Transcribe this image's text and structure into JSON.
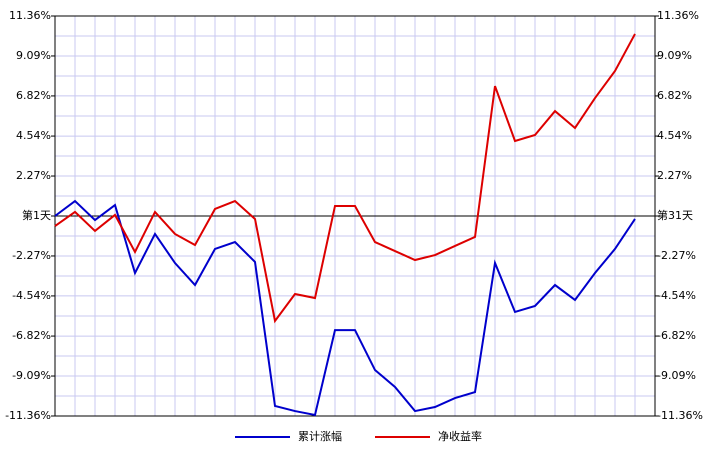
{
  "chart_data": {
    "type": "line",
    "x": [
      1,
      2,
      3,
      4,
      5,
      6,
      7,
      8,
      9,
      10,
      11,
      12,
      13,
      14,
      15,
      16,
      17,
      18,
      19,
      20,
      21,
      22,
      23,
      24,
      25,
      26,
      27,
      28,
      29,
      30
    ],
    "xlim": [
      1,
      31
    ],
    "xticks": [
      1,
      2,
      3,
      4,
      5,
      6,
      7,
      8,
      9,
      10,
      11,
      12,
      13,
      14,
      15,
      16,
      17,
      18,
      19,
      20,
      21,
      22,
      23,
      24,
      25,
      26,
      27,
      28,
      29,
      30,
      31
    ],
    "series": [
      {
        "name": "累计涨幅",
        "color": "#0000cc",
        "values": [
          0,
          0.85,
          -0.23,
          0.62,
          -3.24,
          -1.02,
          -2.67,
          -3.92,
          -1.87,
          -1.48,
          -2.61,
          -10.79,
          -11.08,
          -11.3,
          -6.48,
          -6.48,
          -8.75,
          -9.71,
          -11.08,
          -10.85,
          -10.34,
          -10.0,
          -2.67,
          -5.45,
          -5.11,
          -3.92,
          -4.77,
          -3.24,
          -1.87,
          -0.17
        ]
      },
      {
        "name": "净收益率",
        "color": "#dd0000",
        "values": [
          -0.57,
          0.23,
          -0.85,
          0.06,
          -2.04,
          0.23,
          -1.02,
          -1.65,
          0.4,
          0.85,
          -0.17,
          -5.96,
          -4.43,
          -4.66,
          0.57,
          0.57,
          -1.48,
          -1.99,
          -2.5,
          -2.22,
          -1.7,
          -1.19,
          7.38,
          4.26,
          4.6,
          5.96,
          5.0,
          6.7,
          8.24,
          10.34
        ]
      }
    ],
    "ylim": [
      -11.36,
      11.36
    ],
    "yticks": [
      {
        "value": 11.36,
        "label": "11.36%"
      },
      {
        "value": 9.09,
        "label": "9.09%"
      },
      {
        "value": 6.82,
        "label": "6.82%"
      },
      {
        "value": 4.54,
        "label": "4.54%"
      },
      {
        "value": 2.27,
        "label": "2.27%"
      },
      {
        "value": 0,
        "label": "第1天"
      },
      {
        "value": -2.27,
        "label": "-2.27%"
      },
      {
        "value": -4.54,
        "label": "-4.54%"
      },
      {
        "value": -6.82,
        "label": "-6.82%"
      },
      {
        "value": -9.09,
        "label": "-9.09%"
      },
      {
        "value": -11.36,
        "label": "-11.36%"
      }
    ],
    "y2lim": [
      -11.36,
      11.36
    ],
    "y2ticks": [
      {
        "value": 11.36,
        "label": "11.36%"
      },
      {
        "value": 9.09,
        "label": "9.09%"
      },
      {
        "value": 6.82,
        "label": "6.82%"
      },
      {
        "value": 4.54,
        "label": "4.54%"
      },
      {
        "value": 2.27,
        "label": "2.27%"
      },
      {
        "value": 0,
        "label": "第31天"
      },
      {
        "value": -2.27,
        "label": "-2.27%"
      },
      {
        "value": -4.54,
        "label": "-4.54%"
      },
      {
        "value": -6.82,
        "label": "-6.82%"
      },
      {
        "value": -9.09,
        "label": "-9.09%"
      },
      {
        "value": -11.36,
        "label": "-11.36%"
      }
    ],
    "grid": true,
    "legend": "bottom"
  }
}
